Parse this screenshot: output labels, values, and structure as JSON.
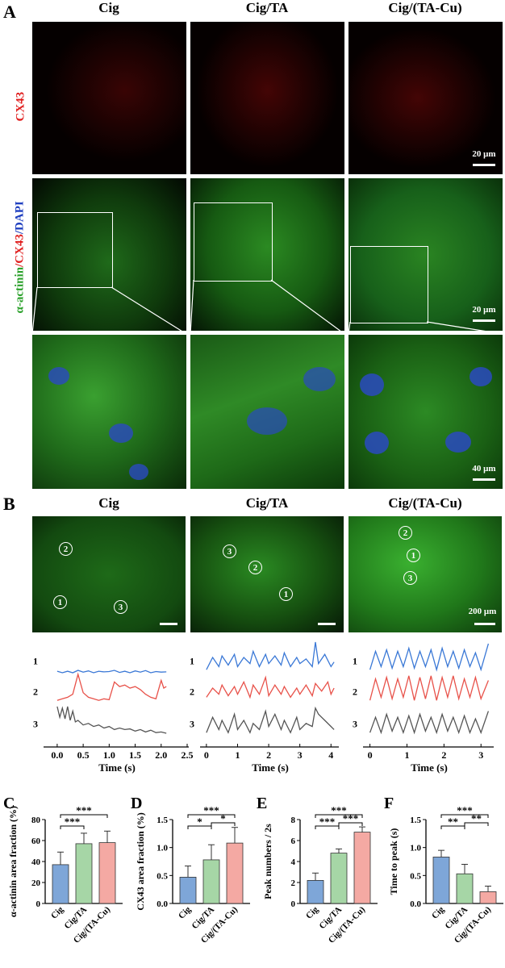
{
  "panel_a": {
    "letter": "A",
    "columns": [
      "Cig",
      "Cig/TA",
      "Cig/(TA-Cu)"
    ],
    "row_label_top": "CX43",
    "row_label_mid": {
      "part1": "α-actinin",
      "part2": "/CX43",
      "part3": "/DAPI"
    },
    "scale_20_top": "20 μm",
    "scale_20_mid": "20 μm",
    "scale_40": "40 μm"
  },
  "panel_b": {
    "letter": "B",
    "columns": [
      "Cig",
      "Cig/TA",
      "Cig/(TA-Cu)"
    ],
    "scale_200": "200 μm",
    "roi_labels": [
      "1",
      "2",
      "3"
    ],
    "trace_colors": {
      "1": "#3a78d6",
      "2": "#e8524a",
      "3": "#555555"
    }
  },
  "chart_data": [
    {
      "id": "B-traces-cig",
      "type": "line",
      "title": "Cig",
      "xlabel": "Time (s)",
      "xlim": [
        -0.2,
        2.5
      ],
      "xticks": [
        0.0,
        0.5,
        1.0,
        1.5,
        2.0,
        2.5
      ],
      "xticklabels": [
        "0.0",
        "0.5",
        "1.0",
        "1.5",
        "2.0",
        "2.5"
      ],
      "series": [
        {
          "name": "1",
          "color": "#3a78d6",
          "x": [
            0.0,
            0.1,
            0.2,
            0.3,
            0.4,
            0.5,
            0.6,
            0.7,
            0.8,
            0.9,
            1.0,
            1.1,
            1.2,
            1.3,
            1.4,
            1.5,
            1.6,
            1.7,
            1.8,
            1.9,
            2.0,
            2.1
          ],
          "y": [
            0.05,
            0.0,
            0.05,
            0.0,
            0.08,
            0.02,
            0.06,
            0.0,
            0.05,
            0.03,
            0.04,
            0.08,
            0.01,
            0.05,
            0.0,
            0.06,
            0.02,
            0.07,
            0.0,
            0.04,
            0.02,
            0.03
          ]
        },
        {
          "name": "2",
          "color": "#e8524a",
          "x": [
            0.0,
            0.1,
            0.2,
            0.3,
            0.4,
            0.5,
            0.6,
            0.7,
            0.8,
            0.9,
            1.0,
            1.1,
            1.2,
            1.3,
            1.4,
            1.5,
            1.6,
            1.7,
            1.8,
            1.9,
            2.0,
            2.05,
            2.1
          ],
          "y": [
            0.1,
            0.15,
            0.2,
            0.3,
            0.95,
            0.35,
            0.2,
            0.15,
            0.1,
            0.15,
            0.12,
            0.7,
            0.55,
            0.6,
            0.5,
            0.55,
            0.45,
            0.3,
            0.2,
            0.15,
            0.75,
            0.5,
            0.55
          ]
        },
        {
          "name": "3",
          "color": "#555555",
          "x": [
            0.0,
            0.05,
            0.1,
            0.15,
            0.2,
            0.25,
            0.3,
            0.35,
            0.4,
            0.5,
            0.6,
            0.7,
            0.8,
            0.9,
            1.0,
            1.1,
            1.2,
            1.3,
            1.4,
            1.5,
            1.6,
            1.7,
            1.8,
            1.9,
            2.0,
            2.1
          ],
          "y": [
            0.95,
            0.6,
            0.9,
            0.55,
            0.95,
            0.5,
            0.8,
            0.45,
            0.5,
            0.35,
            0.4,
            0.3,
            0.35,
            0.25,
            0.3,
            0.2,
            0.25,
            0.2,
            0.22,
            0.15,
            0.2,
            0.12,
            0.18,
            0.1,
            0.12,
            0.08
          ]
        }
      ]
    },
    {
      "id": "B-traces-cigta",
      "type": "line",
      "title": "Cig/TA",
      "xlabel": "Time (s)",
      "xlim": [
        -0.1,
        4.2
      ],
      "xticks": [
        0,
        1,
        2,
        3,
        4
      ],
      "xticklabels": [
        "0",
        "1",
        "2",
        "3",
        "4"
      ],
      "series": [
        {
          "name": "1",
          "color": "#3a78d6",
          "x": [
            0.0,
            0.2,
            0.4,
            0.5,
            0.7,
            0.9,
            1.0,
            1.2,
            1.4,
            1.5,
            1.7,
            1.9,
            2.0,
            2.2,
            2.4,
            2.5,
            2.7,
            2.9,
            3.0,
            3.2,
            3.4,
            3.5,
            3.6,
            3.8,
            4.0,
            4.1
          ],
          "y": [
            0.1,
            0.5,
            0.2,
            0.55,
            0.25,
            0.6,
            0.2,
            0.5,
            0.3,
            0.7,
            0.2,
            0.6,
            0.3,
            0.55,
            0.25,
            0.65,
            0.2,
            0.5,
            0.3,
            0.45,
            0.2,
            1.0,
            0.3,
            0.6,
            0.2,
            0.35
          ]
        },
        {
          "name": "2",
          "color": "#e8524a",
          "x": [
            0.0,
            0.2,
            0.4,
            0.5,
            0.7,
            0.9,
            1.0,
            1.2,
            1.4,
            1.5,
            1.7,
            1.9,
            2.0,
            2.2,
            2.4,
            2.5,
            2.7,
            2.9,
            3.0,
            3.2,
            3.4,
            3.5,
            3.7,
            3.9,
            4.0,
            4.1
          ],
          "y": [
            0.2,
            0.5,
            0.3,
            0.6,
            0.25,
            0.55,
            0.3,
            0.7,
            0.2,
            0.6,
            0.3,
            0.85,
            0.25,
            0.6,
            0.3,
            0.55,
            0.2,
            0.5,
            0.3,
            0.6,
            0.25,
            0.65,
            0.4,
            0.7,
            0.3,
            0.5
          ]
        },
        {
          "name": "3",
          "color": "#555555",
          "x": [
            0.0,
            0.2,
            0.4,
            0.5,
            0.7,
            0.9,
            1.0,
            1.2,
            1.4,
            1.5,
            1.7,
            1.9,
            2.0,
            2.2,
            2.4,
            2.5,
            2.7,
            2.9,
            3.0,
            3.2,
            3.4,
            3.5,
            3.6,
            3.8,
            4.0,
            4.1
          ],
          "y": [
            0.1,
            0.6,
            0.2,
            0.5,
            0.1,
            0.7,
            0.2,
            0.5,
            0.1,
            0.4,
            0.2,
            0.8,
            0.3,
            0.7,
            0.2,
            0.5,
            0.1,
            0.6,
            0.2,
            0.4,
            0.3,
            0.9,
            0.7,
            0.5,
            0.3,
            0.2
          ]
        }
      ]
    },
    {
      "id": "B-traces-cigtacu",
      "type": "line",
      "title": "Cig/(TA-Cu)",
      "xlabel": "Time (s)",
      "xlim": [
        -0.1,
        3.3
      ],
      "xticks": [
        0,
        1,
        2,
        3
      ],
      "xticklabels": [
        "0",
        "1",
        "2",
        "3"
      ],
      "series": [
        {
          "name": "1",
          "color": "#3a78d6",
          "x": [
            0.0,
            0.15,
            0.3,
            0.45,
            0.6,
            0.75,
            0.9,
            1.05,
            1.2,
            1.35,
            1.5,
            1.65,
            1.8,
            1.95,
            2.1,
            2.25,
            2.4,
            2.55,
            2.7,
            2.85,
            3.0,
            3.2
          ],
          "y": [
            0.1,
            0.7,
            0.2,
            0.75,
            0.15,
            0.7,
            0.2,
            0.8,
            0.15,
            0.7,
            0.2,
            0.75,
            0.1,
            0.8,
            0.2,
            0.7,
            0.15,
            0.75,
            0.2,
            0.65,
            0.1,
            0.95
          ]
        },
        {
          "name": "2",
          "color": "#e8524a",
          "x": [
            0.0,
            0.15,
            0.3,
            0.45,
            0.6,
            0.75,
            0.9,
            1.05,
            1.2,
            1.35,
            1.5,
            1.65,
            1.8,
            1.95,
            2.1,
            2.25,
            2.4,
            2.55,
            2.7,
            2.85,
            3.0,
            3.2
          ],
          "y": [
            0.1,
            0.8,
            0.2,
            0.85,
            0.15,
            0.8,
            0.2,
            0.9,
            0.1,
            0.85,
            0.15,
            0.9,
            0.1,
            0.85,
            0.2,
            0.9,
            0.15,
            0.8,
            0.2,
            0.85,
            0.15,
            0.75
          ]
        },
        {
          "name": "3",
          "color": "#555555",
          "x": [
            0.0,
            0.15,
            0.3,
            0.45,
            0.6,
            0.75,
            0.9,
            1.05,
            1.2,
            1.35,
            1.5,
            1.65,
            1.8,
            1.95,
            2.1,
            2.25,
            2.4,
            2.55,
            2.7,
            2.85,
            3.0,
            3.2
          ],
          "y": [
            0.1,
            0.6,
            0.1,
            0.7,
            0.15,
            0.6,
            0.1,
            0.65,
            0.1,
            0.7,
            0.15,
            0.6,
            0.1,
            0.7,
            0.15,
            0.6,
            0.1,
            0.65,
            0.1,
            0.55,
            0.1,
            0.8
          ]
        }
      ]
    },
    {
      "id": "C",
      "type": "bar",
      "letter": "C",
      "categories": [
        "Cig",
        "Cig/TA",
        "Cig/(TA-Cu)"
      ],
      "values": [
        37,
        57,
        58
      ],
      "errors": [
        12,
        10,
        11
      ],
      "colors": [
        "#7ea6d8",
        "#a6d6a6",
        "#f4a9a3"
      ],
      "ylabel": "α-actinin area fraction (%)",
      "ylim": [
        0,
        80
      ],
      "yticks": [
        0,
        20,
        40,
        60,
        80
      ],
      "significance": [
        {
          "from": 0,
          "to": 1,
          "label": "***"
        },
        {
          "from": 0,
          "to": 2,
          "label": "***"
        }
      ]
    },
    {
      "id": "D",
      "type": "bar",
      "letter": "D",
      "categories": [
        "Cig",
        "Cig/TA",
        "Cig/(TA-Cu)"
      ],
      "values": [
        0.47,
        0.78,
        1.08
      ],
      "errors": [
        0.2,
        0.27,
        0.28
      ],
      "colors": [
        "#7ea6d8",
        "#a6d6a6",
        "#f4a9a3"
      ],
      "ylabel": "CX43 area fraction (%)",
      "ylim": [
        0,
        1.5
      ],
      "yticks": [
        0.0,
        0.5,
        1.0,
        1.5
      ],
      "significance": [
        {
          "from": 0,
          "to": 1,
          "label": "*"
        },
        {
          "from": 1,
          "to": 2,
          "label": "*"
        },
        {
          "from": 0,
          "to": 2,
          "label": "***"
        }
      ]
    },
    {
      "id": "E",
      "type": "bar",
      "letter": "E",
      "categories": [
        "Cig",
        "Cig/TA",
        "Cig/(TA-Cu)"
      ],
      "values": [
        2.2,
        4.8,
        6.8
      ],
      "errors": [
        0.7,
        0.4,
        0.5
      ],
      "colors": [
        "#7ea6d8",
        "#a6d6a6",
        "#f4a9a3"
      ],
      "ylabel": "Peak numbers / 2s",
      "ylim": [
        0,
        8
      ],
      "yticks": [
        0,
        2,
        4,
        6,
        8
      ],
      "significance": [
        {
          "from": 0,
          "to": 1,
          "label": "***"
        },
        {
          "from": 1,
          "to": 2,
          "label": "***"
        },
        {
          "from": 0,
          "to": 2,
          "label": "***"
        }
      ]
    },
    {
      "id": "F",
      "type": "bar",
      "letter": "F",
      "categories": [
        "Cig",
        "Cig/TA",
        "Cig/(TA-Cu)"
      ],
      "values": [
        0.83,
        0.53,
        0.21
      ],
      "errors": [
        0.12,
        0.17,
        0.1
      ],
      "colors": [
        "#7ea6d8",
        "#a6d6a6",
        "#f4a9a3"
      ],
      "ylabel": "Time to peak (s)",
      "ylim": [
        0,
        1.5
      ],
      "yticks": [
        0.0,
        0.5,
        1.0,
        1.5
      ],
      "significance": [
        {
          "from": 0,
          "to": 1,
          "label": "**"
        },
        {
          "from": 1,
          "to": 2,
          "label": "**"
        },
        {
          "from": 0,
          "to": 2,
          "label": "***"
        }
      ]
    }
  ]
}
